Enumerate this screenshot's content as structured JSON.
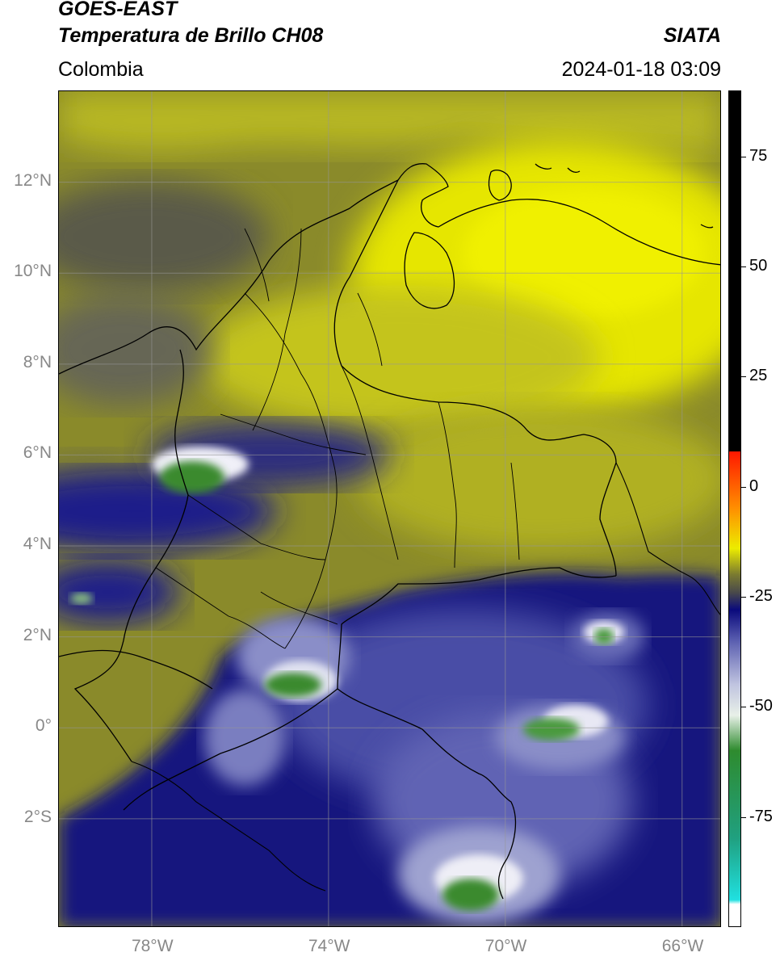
{
  "header": {
    "satellite": "GOES-EAST",
    "product": "Temperatura de Brillo CH08",
    "region": "Colombia",
    "agency": "SIATA",
    "datetime": "2024-01-18 03:09"
  },
  "map": {
    "lon_range": [
      -80.1,
      -65.1
    ],
    "lat_range": [
      -4.4,
      14.0
    ],
    "lon_ticks": [
      {
        "value": -78,
        "label": "78°W"
      },
      {
        "value": -74,
        "label": "74°W"
      },
      {
        "value": -70,
        "label": "70°W"
      },
      {
        "value": -66,
        "label": "66°W"
      }
    ],
    "lat_ticks": [
      {
        "value": 12,
        "label": "12°N"
      },
      {
        "value": 10,
        "label": "10°N"
      },
      {
        "value": 8,
        "label": "8°N"
      },
      {
        "value": 6,
        "label": "6°N"
      },
      {
        "value": 4,
        "label": "4°N"
      },
      {
        "value": 2,
        "label": "2°N"
      },
      {
        "value": 0,
        "label": "0°"
      },
      {
        "value": -2,
        "label": "2°S"
      }
    ],
    "gridlines": true
  },
  "colorbar": {
    "range": [
      -100,
      90
    ],
    "ticks": [
      {
        "value": 75,
        "label": "75"
      },
      {
        "value": 50,
        "label": "50"
      },
      {
        "value": 25,
        "label": "25"
      },
      {
        "value": 0,
        "label": "0"
      },
      {
        "value": -25,
        "label": "-25"
      },
      {
        "value": -50,
        "label": "-50"
      },
      {
        "value": -75,
        "label": "-75"
      }
    ],
    "stops": [
      {
        "value": -100,
        "color": "#ffffff"
      },
      {
        "value": -95,
        "color": "#ffffff"
      },
      {
        "value": -94,
        "color": "#20e0e0"
      },
      {
        "value": -80,
        "color": "#20a080"
      },
      {
        "value": -60,
        "color": "#2e8b2e"
      },
      {
        "value": -52,
        "color": "#e8f0e8"
      },
      {
        "value": -45,
        "color": "#c0c4e0"
      },
      {
        "value": -35,
        "color": "#5a5eb0"
      },
      {
        "value": -28,
        "color": "#0a0a7c"
      },
      {
        "value": -24,
        "color": "#4a4a4a"
      },
      {
        "value": -20,
        "color": "#7a7a30"
      },
      {
        "value": -14,
        "color": "#ecec00"
      },
      {
        "value": -5,
        "color": "#ff9000"
      },
      {
        "value": 8,
        "color": "#ff1800"
      },
      {
        "value": 8.1,
        "color": "#000000"
      },
      {
        "value": 90,
        "color": "#000000"
      }
    ]
  }
}
